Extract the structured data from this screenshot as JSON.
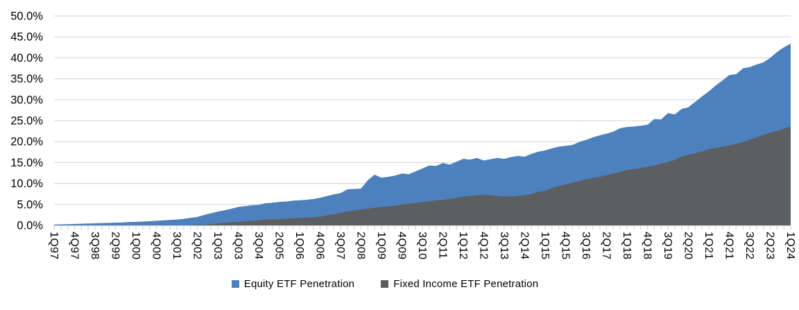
{
  "chart_data": {
    "type": "area",
    "title": "",
    "xlabel": "",
    "ylabel": "",
    "ylim": [
      0,
      50
    ],
    "y_tick_step": 5,
    "y_tick_labels": [
      "0.0%",
      "5.0%",
      "10.0%",
      "15.0%",
      "20.0%",
      "25.0%",
      "30.0%",
      "35.0%",
      "40.0%",
      "45.0%",
      "50.0%"
    ],
    "grid": true,
    "legend_position": "bottom",
    "x_tick_label_every": 3,
    "x_axis_visible_labels": [
      "1Q97",
      "4Q97",
      "3Q98",
      "2Q99",
      "1Q00",
      "4Q00",
      "3Q01",
      "2Q02",
      "1Q03",
      "4Q03",
      "3Q04",
      "2Q05",
      "1Q06",
      "4Q06",
      "3Q07",
      "2Q08",
      "1Q09",
      "4Q09",
      "3Q10",
      "2Q11",
      "1Q12",
      "4Q12",
      "3Q13",
      "2Q14",
      "1Q15",
      "4Q15",
      "3Q16",
      "2Q17",
      "1Q18",
      "4Q18",
      "3Q19",
      "2Q20",
      "1Q21",
      "4Q21",
      "3Q22",
      "2Q23",
      "1Q24"
    ],
    "categories": [
      "1Q97",
      "2Q97",
      "3Q97",
      "4Q97",
      "1Q98",
      "2Q98",
      "3Q98",
      "4Q98",
      "1Q99",
      "2Q99",
      "3Q99",
      "4Q99",
      "1Q00",
      "2Q00",
      "3Q00",
      "4Q00",
      "1Q01",
      "2Q01",
      "3Q01",
      "4Q01",
      "1Q02",
      "2Q02",
      "3Q02",
      "4Q02",
      "1Q03",
      "2Q03",
      "3Q03",
      "4Q03",
      "1Q04",
      "2Q04",
      "3Q04",
      "4Q04",
      "1Q05",
      "2Q05",
      "3Q05",
      "4Q05",
      "1Q06",
      "2Q06",
      "3Q06",
      "4Q06",
      "1Q07",
      "2Q07",
      "3Q07",
      "4Q07",
      "1Q08",
      "2Q08",
      "3Q08",
      "4Q08",
      "1Q09",
      "2Q09",
      "3Q09",
      "4Q09",
      "1Q10",
      "2Q10",
      "3Q10",
      "4Q10",
      "1Q11",
      "2Q11",
      "3Q11",
      "4Q11",
      "1Q12",
      "2Q12",
      "3Q12",
      "4Q12",
      "1Q13",
      "2Q13",
      "3Q13",
      "4Q13",
      "1Q14",
      "2Q14",
      "3Q14",
      "4Q14",
      "1Q15",
      "2Q15",
      "3Q15",
      "4Q15",
      "1Q16",
      "2Q16",
      "3Q16",
      "4Q16",
      "1Q17",
      "2Q17",
      "3Q17",
      "4Q17",
      "1Q18",
      "2Q18",
      "3Q18",
      "4Q18",
      "1Q19",
      "2Q19",
      "3Q19",
      "4Q19",
      "1Q20",
      "2Q20",
      "3Q20",
      "4Q20",
      "1Q21",
      "2Q21",
      "3Q21",
      "4Q21",
      "1Q22",
      "2Q22",
      "3Q22",
      "4Q22",
      "1Q23",
      "2Q23",
      "3Q23",
      "4Q23",
      "1Q24"
    ],
    "series": [
      {
        "name": "Equity ETF Penetration",
        "color": "#4C81BD",
        "unit": "%",
        "values": [
          0.2,
          0.25,
          0.3,
          0.35,
          0.4,
          0.45,
          0.5,
          0.55,
          0.6,
          0.65,
          0.7,
          0.8,
          0.85,
          0.9,
          1.0,
          1.1,
          1.2,
          1.3,
          1.4,
          1.55,
          1.8,
          2.0,
          2.5,
          2.9,
          3.3,
          3.6,
          4.0,
          4.4,
          4.6,
          4.8,
          4.9,
          5.3,
          5.4,
          5.6,
          5.7,
          5.9,
          6.0,
          6.1,
          6.3,
          6.6,
          7.0,
          7.4,
          7.7,
          8.6,
          8.7,
          8.8,
          10.8,
          12.1,
          11.4,
          11.6,
          11.9,
          12.4,
          12.2,
          12.9,
          13.6,
          14.3,
          14.2,
          14.9,
          14.5,
          15.2,
          15.9,
          15.7,
          16.1,
          15.5,
          15.8,
          16.1,
          15.9,
          16.3,
          16.6,
          16.4,
          17.1,
          17.6,
          17.9,
          18.4,
          18.8,
          19.0,
          19.2,
          19.9,
          20.4,
          21.0,
          21.5,
          21.9,
          22.4,
          23.2,
          23.5,
          23.6,
          23.8,
          24.0,
          25.4,
          25.3,
          26.8,
          26.5,
          27.8,
          28.2,
          29.5,
          30.8,
          32.0,
          33.4,
          34.6,
          35.9,
          36.1,
          37.5,
          37.8,
          38.4,
          38.9,
          40.0,
          41.4,
          42.5,
          43.4
        ]
      },
      {
        "name": "Fixed Income ETF Penetration",
        "color": "#5D5E60",
        "unit": "%",
        "values": [
          0,
          0,
          0,
          0,
          0,
          0,
          0,
          0,
          0,
          0,
          0,
          0,
          0,
          0,
          0,
          0,
          0,
          0,
          0,
          0,
          0,
          0.1,
          0.15,
          0.3,
          0.45,
          0.6,
          0.75,
          0.85,
          1.0,
          1.1,
          1.2,
          1.35,
          1.45,
          1.5,
          1.6,
          1.7,
          1.8,
          1.85,
          1.95,
          2.1,
          2.4,
          2.7,
          3.0,
          3.3,
          3.6,
          3.8,
          4.0,
          4.2,
          4.4,
          4.55,
          4.7,
          4.95,
          5.2,
          5.35,
          5.6,
          5.75,
          5.95,
          6.1,
          6.3,
          6.6,
          6.9,
          7.0,
          7.2,
          7.3,
          7.2,
          7.0,
          6.9,
          6.9,
          7.0,
          7.2,
          7.5,
          8.0,
          8.3,
          8.9,
          9.4,
          9.8,
          10.2,
          10.6,
          11.0,
          11.3,
          11.6,
          12.0,
          12.4,
          12.8,
          13.2,
          13.4,
          13.7,
          14.0,
          14.3,
          14.7,
          15.2,
          15.6,
          16.4,
          16.9,
          17.2,
          17.7,
          18.2,
          18.5,
          18.8,
          19.1,
          19.5,
          19.9,
          20.4,
          21.0,
          21.6,
          22.1,
          22.6,
          23.1,
          23.6
        ]
      }
    ],
    "style": {
      "gridline_color": "#D9D9D9",
      "axis_line_color": "#C6C6C6",
      "tick_color": "#D9D9D9",
      "label_color": "#000000"
    }
  },
  "legend": {
    "items": [
      {
        "label": "Equity ETF Penetration"
      },
      {
        "label": "Fixed Income ETF Penetration"
      }
    ]
  }
}
